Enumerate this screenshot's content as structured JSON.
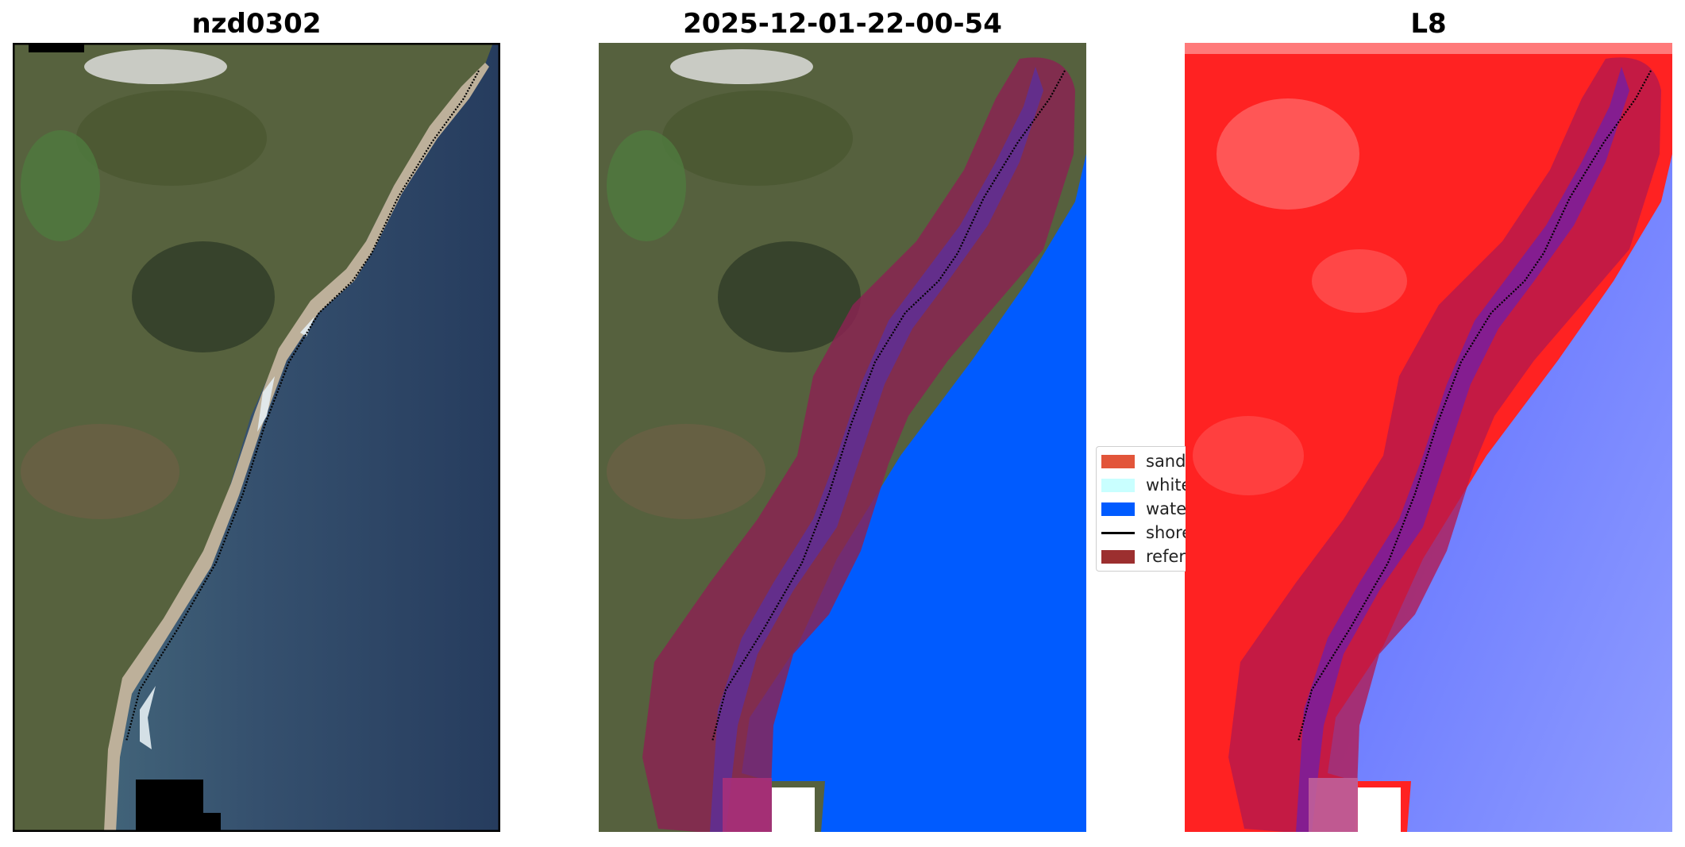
{
  "panels": [
    {
      "title": "nzd0302"
    },
    {
      "title": "2025-12-01-22-00-54"
    },
    {
      "title": "L8"
    }
  ],
  "legend": {
    "items": [
      {
        "label": "sand",
        "color": "#e2553a",
        "kind": "patch"
      },
      {
        "label": "white-water",
        "color": "#c9ffff",
        "kind": "patch"
      },
      {
        "label": "water",
        "color": "#005bff",
        "kind": "patch"
      },
      {
        "label": "shoreline",
        "color": "#000000",
        "kind": "line"
      },
      {
        "label": "reference shoreline buffer",
        "color": "#9c2f2f",
        "kind": "patch"
      }
    ]
  },
  "colors": {
    "land": "#56613e",
    "sea": "#2e4a6c",
    "beach": "#bdb09a",
    "water_class": "#005bff",
    "buffer": "#8b2252",
    "index_land": "#ff2020",
    "index_water": "#6c7cff"
  }
}
